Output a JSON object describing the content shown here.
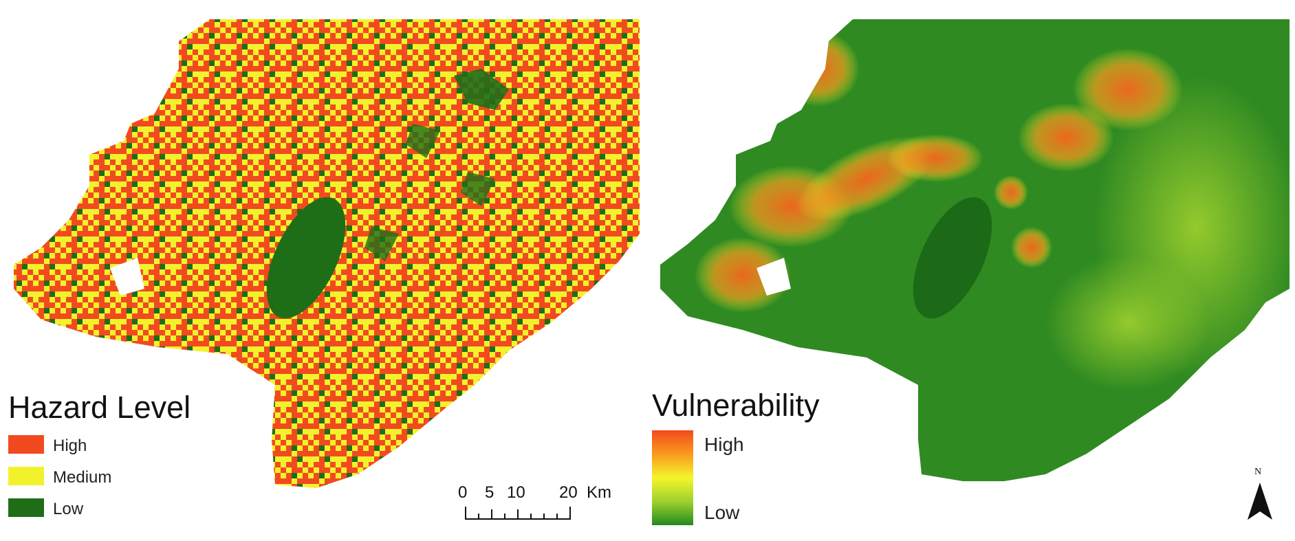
{
  "hazard_legend": {
    "title": "Hazard Level",
    "items": [
      {
        "label": "High",
        "color": "#f24a1f"
      },
      {
        "label": "Medium",
        "color": "#f2f22c"
      },
      {
        "label": "Low",
        "color": "#1e6e18"
      }
    ]
  },
  "vulnerability_legend": {
    "title": "Vulnerability",
    "high_label": "High",
    "low_label": "Low",
    "gradient_colors": [
      "#f24a1f",
      "#fa9a1e",
      "#f5f52a",
      "#9fd12e",
      "#228a1e"
    ]
  },
  "scale_bar": {
    "ticks": [
      "0",
      "5",
      "10",
      "20"
    ],
    "unit": "Km"
  },
  "north_arrow": {
    "label": "N",
    "icon": "north-arrow-icon"
  }
}
